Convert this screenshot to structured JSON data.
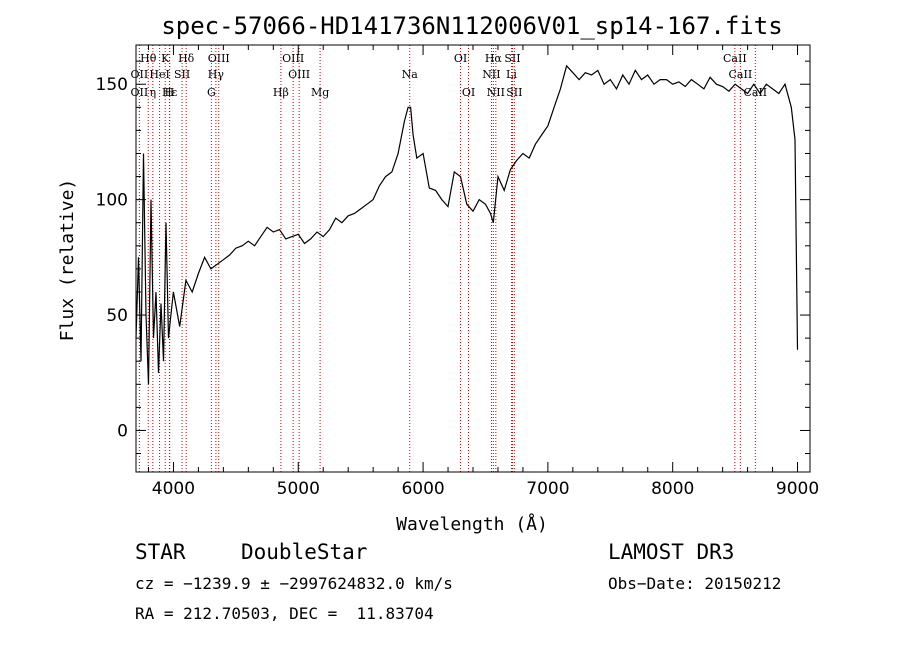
{
  "chart_data": {
    "type": "line",
    "title": "spec-57066-HD141736N112006V01_sp14-167.fits",
    "xlabel": "Wavelength (Å)",
    "ylabel": "Flux (relative)",
    "xlim": [
      3700,
      9100
    ],
    "ylim": [
      -18,
      167
    ],
    "xticks": [
      4000,
      5000,
      6000,
      7000,
      8000,
      9000
    ],
    "yticks": [
      0,
      50,
      100,
      150
    ],
    "series": [
      {
        "color": "#000000",
        "x": [
          3700,
          3720,
          3740,
          3760,
          3780,
          3800,
          3820,
          3840,
          3860,
          3880,
          3900,
          3920,
          3940,
          3960,
          3980,
          4000,
          4050,
          4100,
          4150,
          4200,
          4250,
          4300,
          4350,
          4400,
          4450,
          4500,
          4550,
          4600,
          4650,
          4700,
          4750,
          4800,
          4850,
          4900,
          4950,
          5000,
          5050,
          5100,
          5150,
          5200,
          5250,
          5300,
          5350,
          5400,
          5450,
          5500,
          5550,
          5600,
          5650,
          5700,
          5750,
          5800,
          5850,
          5880,
          5900,
          5920,
          5950,
          6000,
          6050,
          6100,
          6150,
          6200,
          6250,
          6300,
          6350,
          6400,
          6450,
          6500,
          6540,
          6563,
          6600,
          6650,
          6700,
          6750,
          6800,
          6850,
          6900,
          6950,
          7000,
          7050,
          7100,
          7150,
          7200,
          7250,
          7300,
          7350,
          7400,
          7450,
          7500,
          7550,
          7600,
          7650,
          7700,
          7750,
          7800,
          7850,
          7900,
          7950,
          8000,
          8050,
          8100,
          8150,
          8200,
          8250,
          8300,
          8350,
          8400,
          8450,
          8500,
          8550,
          8600,
          8650,
          8700,
          8750,
          8800,
          8850,
          8900,
          8950,
          8980,
          9000
        ],
        "y": [
          40,
          75,
          30,
          120,
          50,
          20,
          100,
          40,
          60,
          25,
          55,
          30,
          90,
          40,
          50,
          60,
          45,
          65,
          60,
          68,
          75,
          70,
          72,
          74,
          76,
          79,
          80,
          82,
          80,
          84,
          88,
          86,
          87,
          83,
          84,
          85,
          81,
          83,
          86,
          84,
          87,
          92,
          90,
          93,
          94,
          96,
          98,
          100,
          106,
          110,
          112,
          120,
          134,
          140,
          140,
          128,
          118,
          120,
          105,
          104,
          100,
          97,
          112,
          110,
          98,
          95,
          100,
          98,
          94,
          90,
          110,
          104,
          113,
          117,
          120,
          118,
          124,
          128,
          132,
          140,
          148,
          158,
          155,
          152,
          155,
          154,
          156,
          150,
          152,
          148,
          154,
          150,
          156,
          152,
          154,
          150,
          152,
          152,
          150,
          151,
          149,
          152,
          150,
          148,
          153,
          150,
          149,
          147,
          150,
          148,
          146,
          150,
          146,
          150,
          148,
          146,
          150,
          140,
          126,
          35
        ]
      }
    ],
    "lines": [
      {
        "label": "Hθ",
        "x": 3798,
        "row": 1
      },
      {
        "label": "OII",
        "x": 3727,
        "row": 2
      },
      {
        "label": "Hε",
        "x": 3970,
        "row": 3
      },
      {
        "label": "OII",
        "x": 3727,
        "row": 3
      },
      {
        "label": "K",
        "x": 3934,
        "row": 1
      },
      {
        "label": "HeI",
        "x": 3889,
        "row": 2
      },
      {
        "label": "SII",
        "x": 4069,
        "row": 2
      },
      {
        "label": "η",
        "x": 3835,
        "row": 3
      },
      {
        "label": "H",
        "x": 3968,
        "row": 3
      },
      {
        "label": "Hδ",
        "x": 4102,
        "row": 1
      },
      {
        "label": "OIII",
        "x": 4363,
        "row": 1
      },
      {
        "label": "Hγ",
        "x": 4340,
        "row": 2
      },
      {
        "label": "G",
        "x": 4304,
        "row": 3
      },
      {
        "label": "OIII",
        "x": 4959,
        "row": 1
      },
      {
        "label": "OIII",
        "x": 5007,
        "row": 2
      },
      {
        "label": "Hβ",
        "x": 4861,
        "row": 3
      },
      {
        "label": "Mg",
        "x": 5175,
        "row": 3
      },
      {
        "label": "Na",
        "x": 5893,
        "row": 2
      },
      {
        "label": "OI",
        "x": 6300,
        "row": 1
      },
      {
        "label": "OI",
        "x": 6364,
        "row": 3
      },
      {
        "label": "Hα",
        "x": 6563,
        "row": 1
      },
      {
        "label": "SII",
        "x": 6716,
        "row": 1
      },
      {
        "label": "NII",
        "x": 6548,
        "row": 2
      },
      {
        "label": "Li",
        "x": 6708,
        "row": 2
      },
      {
        "label": "NII",
        "x": 6583,
        "row": 3
      },
      {
        "label": "SII",
        "x": 6731,
        "row": 3
      },
      {
        "label": "CaII",
        "x": 8498,
        "row": 1
      },
      {
        "label": "CaII",
        "x": 8542,
        "row": 2
      },
      {
        "label": "CaII",
        "x": 8662,
        "row": 3
      }
    ],
    "line_color": "#cc0000"
  },
  "info": {
    "class": "STAR",
    "subclass": "DoubleStar",
    "survey": "LAMOST DR3",
    "cz": "cz = −1239.9 ± −2997624832.0 km/s",
    "obsdate": "Obs−Date: 20150212",
    "radec": "RA = 212.70503, DEC =  11.83704"
  }
}
